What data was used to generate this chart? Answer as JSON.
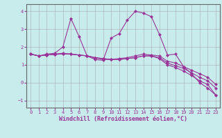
{
  "xlabel": "Windchill (Refroidissement éolien,°C)",
  "bg_color": "#c8ecec",
  "line_color": "#993399",
  "marker": "D",
  "markersize": 2,
  "linewidth": 0.8,
  "ylim": [
    -1.4,
    4.4
  ],
  "xlim": [
    -0.5,
    23.5
  ],
  "yticks": [
    -1,
    0,
    1,
    2,
    3,
    4
  ],
  "xticks": [
    0,
    1,
    2,
    3,
    4,
    5,
    6,
    7,
    8,
    9,
    10,
    11,
    12,
    13,
    14,
    15,
    16,
    17,
    18,
    19,
    20,
    21,
    22,
    23
  ],
  "series": [
    [
      1.6,
      1.5,
      1.6,
      1.65,
      2.0,
      3.6,
      2.6,
      1.5,
      1.3,
      1.25,
      2.5,
      2.75,
      3.5,
      4.0,
      3.9,
      3.7,
      2.7,
      1.55,
      1.6,
      0.9,
      0.5,
      0.0,
      -0.3,
      -0.7
    ],
    [
      1.6,
      1.5,
      1.55,
      1.6,
      1.65,
      1.6,
      1.55,
      1.5,
      1.4,
      1.3,
      1.3,
      1.35,
      1.4,
      1.5,
      1.6,
      1.55,
      1.5,
      1.2,
      1.1,
      0.9,
      0.7,
      0.5,
      0.3,
      -0.1
    ],
    [
      1.6,
      1.5,
      1.55,
      1.58,
      1.62,
      1.6,
      1.55,
      1.5,
      1.4,
      1.35,
      1.3,
      1.3,
      1.35,
      1.4,
      1.5,
      1.5,
      1.4,
      1.1,
      0.95,
      0.8,
      0.55,
      0.3,
      0.1,
      -0.3
    ],
    [
      1.6,
      1.5,
      1.55,
      1.58,
      1.62,
      1.6,
      1.55,
      1.5,
      1.4,
      1.35,
      1.3,
      1.3,
      1.35,
      1.4,
      1.5,
      1.5,
      1.35,
      1.0,
      0.85,
      0.65,
      0.4,
      0.1,
      -0.1,
      -0.7
    ]
  ],
  "grid_color": "#aaaaaa",
  "tick_fontsize": 5,
  "label_fontsize": 6,
  "spine_color": "#666666"
}
